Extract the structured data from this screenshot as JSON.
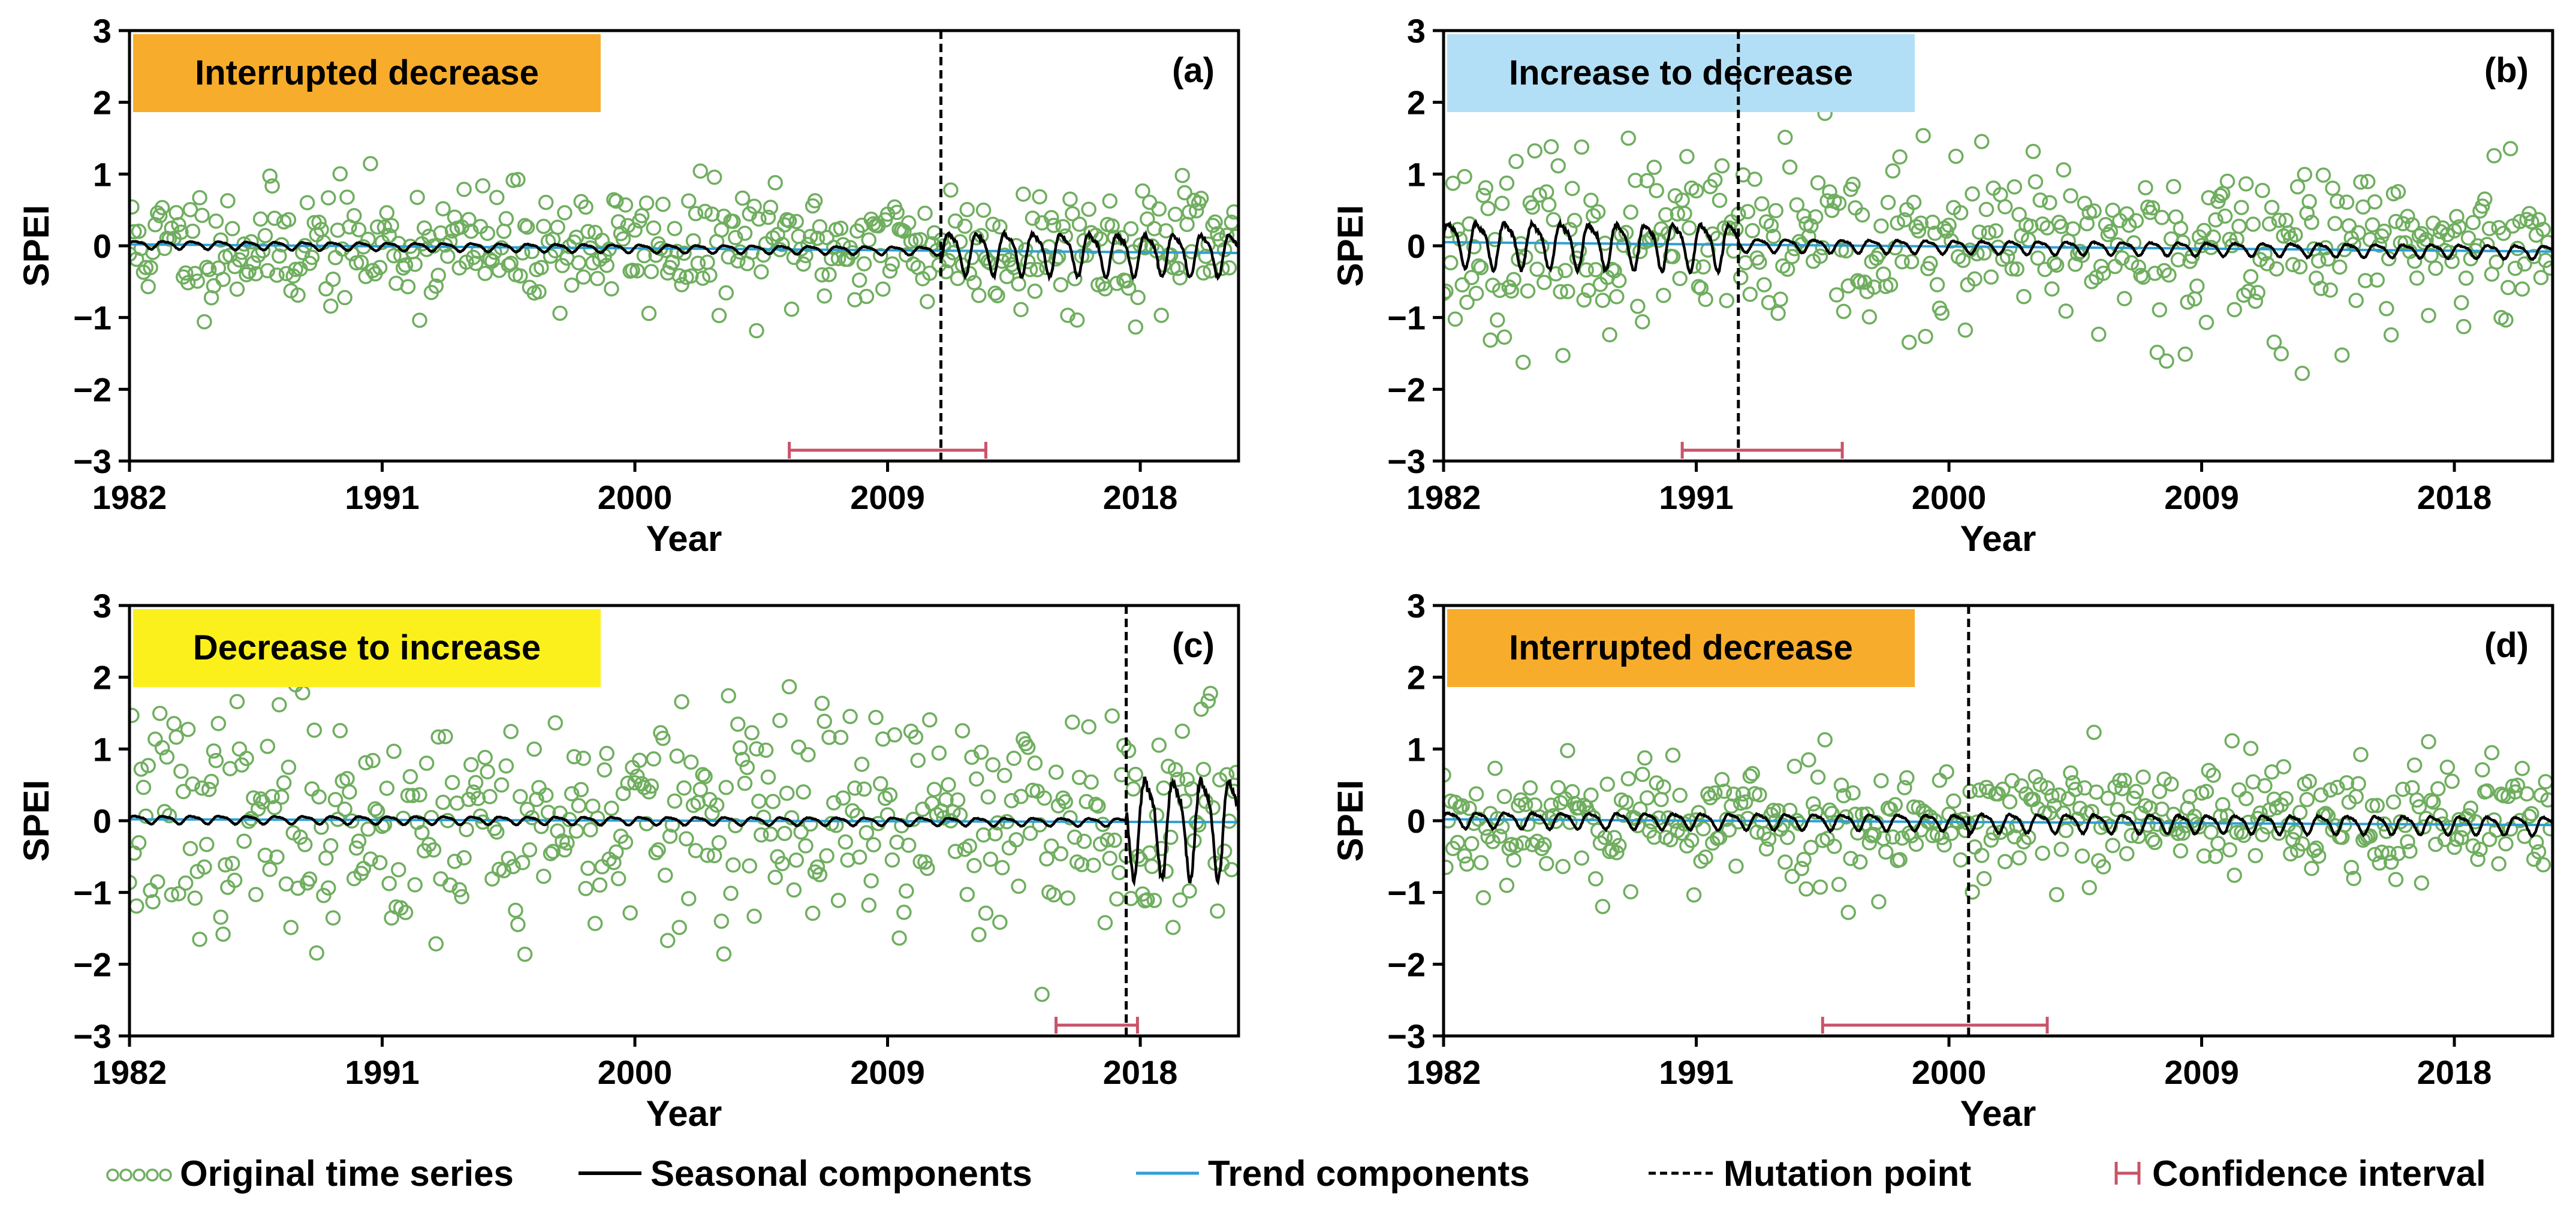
{
  "colors": {
    "points": "#6fae5f",
    "seasonal": "#000000",
    "trend": "#2e9fd6",
    "mutation": "#000000",
    "ci": "#c8546a",
    "orange": "#f7ad2b",
    "blue": "#b3dff6",
    "yellow": "#fbf01c"
  },
  "legend": {
    "original": "Original time series",
    "seasonal": "Seasonal components",
    "trend": "Trend components",
    "mutation": "Mutation point",
    "ci": "Confidence interval"
  },
  "chart_data": [
    {
      "type": "scatter",
      "panel": "(a)",
      "label": "Interrupted decrease",
      "label_color": "orange",
      "xlabel": "Year",
      "ylabel": "SPEI",
      "xlim": [
        1982,
        2021.5
      ],
      "ylim": [
        -3,
        3
      ],
      "xticks": [
        1982,
        1991,
        2000,
        2009,
        2018
      ],
      "yticks": [
        -3,
        -2,
        -1,
        0,
        1,
        2,
        3
      ],
      "ytick_labels": [
        "−3",
        "−2",
        "−1",
        "0",
        "1",
        "2",
        "3"
      ],
      "series": [
        {
          "name": "Original time series",
          "spread": 0.42,
          "seed": 11
        },
        {
          "name": "Seasonal components",
          "amplitude_before": 0.06,
          "amplitude_after": 0.32
        },
        {
          "name": "Trend components",
          "start": 0.02,
          "end": -0.1
        }
      ],
      "mutation_point": 2010.9,
      "confidence_interval": [
        2005.5,
        2012.5
      ]
    },
    {
      "type": "scatter",
      "panel": "(b)",
      "label": "Increase to decrease",
      "label_color": "blue",
      "xlabel": "Year",
      "ylabel": "SPEI",
      "xlim": [
        1982,
        2021.5
      ],
      "ylim": [
        -3,
        3
      ],
      "xticks": [
        1982,
        1991,
        2000,
        2009,
        2018
      ],
      "yticks": [
        -3,
        -2,
        -1,
        0,
        1,
        2,
        3
      ],
      "ytick_labels": [
        "−3",
        "−2",
        "−1",
        "0",
        "1",
        "2",
        "3"
      ],
      "series": [
        {
          "name": "Original time series",
          "spread": 0.6,
          "seed": 23
        },
        {
          "name": "Seasonal components",
          "amplitude_before": 0.35,
          "amplitude_after": 0.1
        },
        {
          "name": "Trend components",
          "start": 0.05,
          "end": -0.08
        }
      ],
      "mutation_point": 1992.5,
      "confidence_interval": [
        1990.5,
        1996.2
      ]
    },
    {
      "type": "scatter",
      "panel": "(c)",
      "label": "Decrease to increase",
      "label_color": "yellow",
      "xlabel": "Year",
      "ylabel": "SPEI",
      "xlim": [
        1982,
        2021.5
      ],
      "ylim": [
        -3,
        3
      ],
      "xticks": [
        1982,
        1991,
        2000,
        2009,
        2018
      ],
      "yticks": [
        -3,
        -2,
        -1,
        0,
        1,
        2,
        3
      ],
      "ytick_labels": [
        "−3",
        "−2",
        "−1",
        "0",
        "1",
        "2",
        "3"
      ],
      "series": [
        {
          "name": "Original time series",
          "spread": 0.78,
          "seed": 37
        },
        {
          "name": "Seasonal components",
          "amplitude_before": 0.06,
          "amplitude_after": 0.75
        },
        {
          "name": "Trend components",
          "start": 0.02,
          "end": -0.02
        }
      ],
      "mutation_point": 2017.5,
      "confidence_interval": [
        2015.0,
        2017.9
      ]
    },
    {
      "type": "scatter",
      "panel": "(d)",
      "label": "Interrupted decrease",
      "label_color": "orange",
      "xlabel": "Year",
      "ylabel": "SPEI",
      "xlim": [
        1982,
        2021.5
      ],
      "ylim": [
        -3,
        3
      ],
      "xticks": [
        1982,
        1991,
        2000,
        2009,
        2018
      ],
      "yticks": [
        -3,
        -2,
        -1,
        0,
        1,
        2,
        3
      ],
      "ytick_labels": [
        "−3",
        "−2",
        "−1",
        "0",
        "1",
        "2",
        "3"
      ],
      "series": [
        {
          "name": "Original time series",
          "spread": 0.45,
          "seed": 53
        },
        {
          "name": "Seasonal components",
          "amplitude_before": 0.12,
          "amplitude_after": 0.14
        },
        {
          "name": "Trend components",
          "start": 0.02,
          "end": -0.06
        }
      ],
      "mutation_point": 2000.7,
      "confidence_interval": [
        1995.5,
        2003.5
      ]
    }
  ]
}
